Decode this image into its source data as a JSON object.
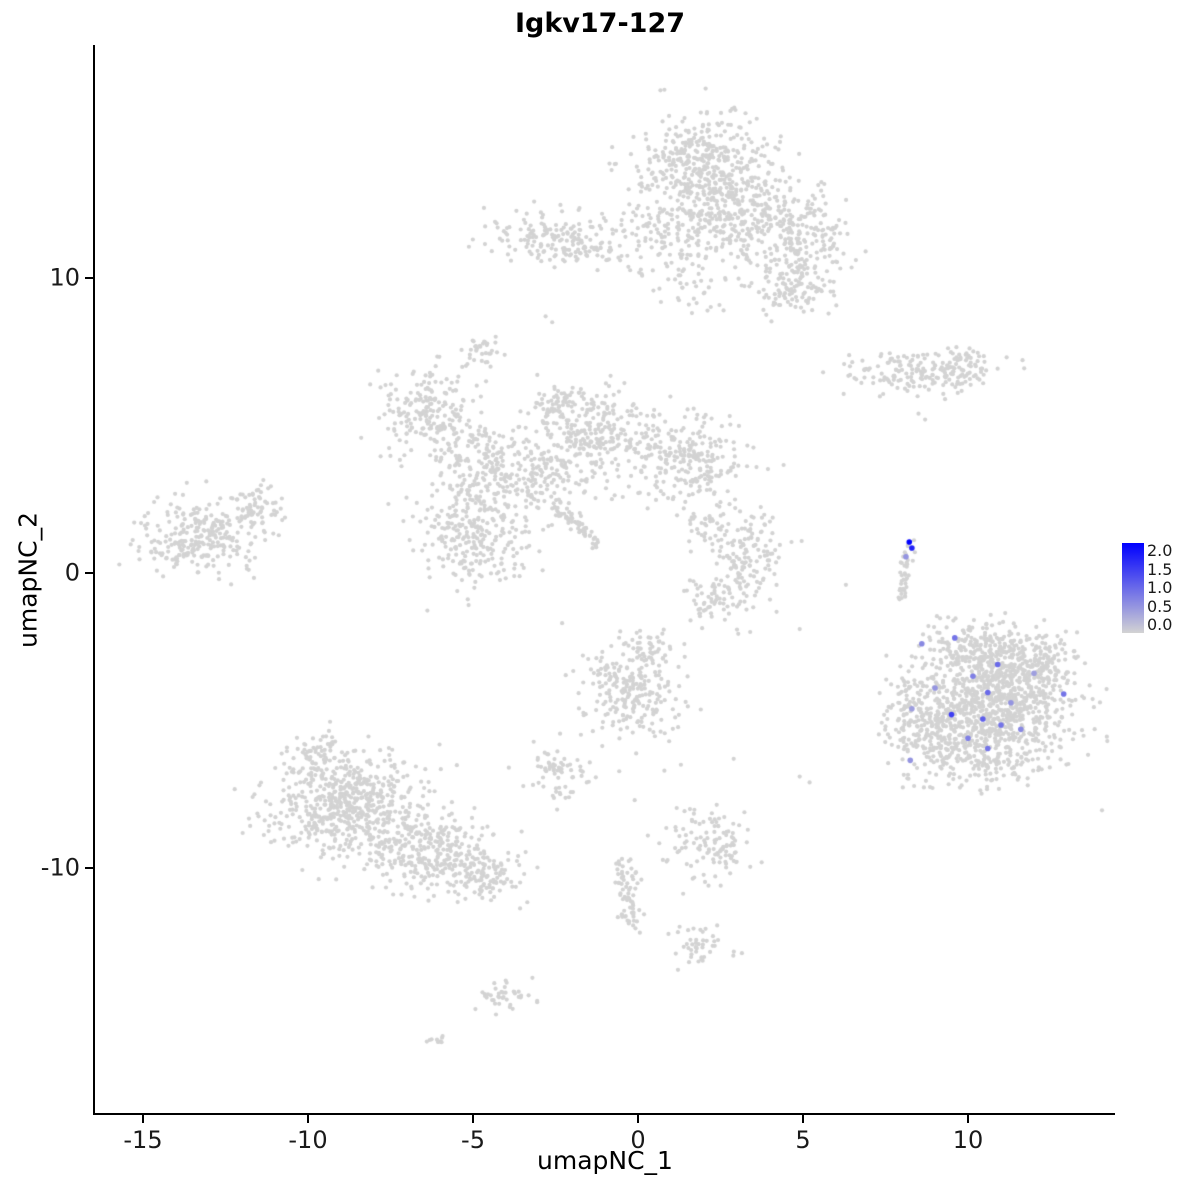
{
  "chart_data": {
    "type": "scatter",
    "title": "Igkv17-127",
    "xlabel": "umapNC_1",
    "ylabel": "umapNC_2",
    "xlim": [
      -16.5,
      14.5
    ],
    "ylim": [
      -18.3,
      17.9
    ],
    "grid": "off",
    "legend_position": "right",
    "x_ticks": [
      -15,
      -10,
      -5,
      0,
      5,
      10
    ],
    "x_tick_labels": [
      "-15",
      "-10",
      "-5",
      "0",
      "5",
      "10"
    ],
    "y_ticks": [
      10,
      0,
      -10
    ],
    "y_tick_labels": [
      "10",
      "0",
      "-10"
    ],
    "point_color_zero": "#d3d3d3",
    "point_color_max": "#0000ff",
    "legend": {
      "vmin": 0.0,
      "vmax": 2.0,
      "ticks": [
        "2.0",
        "1.5",
        "1.0",
        "0.5",
        "0.0"
      ]
    },
    "clusters": [
      {
        "cx": 2.0,
        "cy": 13.8,
        "sx": 1.0,
        "sy": 0.9,
        "n": 430
      },
      {
        "cx": 3.3,
        "cy": 12.1,
        "sx": 0.9,
        "sy": 0.8,
        "n": 240
      },
      {
        "cx": 5.0,
        "cy": 11.2,
        "sx": 0.7,
        "sy": 0.9,
        "n": 200
      },
      {
        "cx": 4.6,
        "cy": 9.6,
        "sx": 0.5,
        "sy": 0.5,
        "n": 80
      },
      {
        "cx": 1.0,
        "cy": 11.6,
        "sx": 0.9,
        "sy": 0.7,
        "n": 130
      },
      {
        "cx": 1.8,
        "cy": 9.8,
        "sx": 0.8,
        "sy": 0.5,
        "n": 45
      },
      {
        "cx": -2.7,
        "cy": 11.4,
        "sx": 1.0,
        "sy": 0.45,
        "n": 150
      },
      {
        "cx": -1.2,
        "cy": 10.9,
        "sx": 0.5,
        "sy": 0.3,
        "n": 40
      },
      {
        "cx": -4.7,
        "cy": 7.4,
        "sx": 0.35,
        "sy": 0.3,
        "n": 35
      },
      {
        "cx": 8.3,
        "cy": 6.8,
        "sx": 1.1,
        "sy": 0.35,
        "n": 150
      },
      {
        "cx": 9.8,
        "cy": 6.9,
        "sx": 0.5,
        "sy": 0.4,
        "n": 60
      },
      {
        "cx": -6.3,
        "cy": 5.4,
        "sx": 0.75,
        "sy": 0.8,
        "n": 210
      },
      {
        "cx": -4.7,
        "cy": 3.6,
        "sx": 0.7,
        "sy": 0.7,
        "n": 170
      },
      {
        "cx": -1.3,
        "cy": 4.8,
        "sx": 0.85,
        "sy": 0.7,
        "n": 270
      },
      {
        "cx": 1.5,
        "cy": 3.8,
        "sx": 0.9,
        "sy": 0.7,
        "n": 250
      },
      {
        "cx": -5.0,
        "cy": 1.2,
        "sx": 0.9,
        "sy": 0.9,
        "n": 270
      },
      {
        "cx": -2.9,
        "cy": 3.1,
        "sx": 0.8,
        "sy": 0.6,
        "n": 130
      },
      {
        "cx": -2.5,
        "cy": 5.8,
        "sx": 0.4,
        "sy": 0.35,
        "n": 50
      },
      {
        "cx": -13.2,
        "cy": 1.2,
        "sx": 1.0,
        "sy": 0.65,
        "n": 270
      },
      {
        "cx": -11.7,
        "cy": 2.2,
        "sx": 0.5,
        "sy": 0.4,
        "n": 60
      },
      {
        "cx": 3.3,
        "cy": 0.6,
        "sx": 0.55,
        "sy": 0.75,
        "n": 140
      },
      {
        "cx": 2.3,
        "cy": -0.9,
        "sx": 0.5,
        "sy": 0.35,
        "n": 60
      },
      {
        "cx": 2.2,
        "cy": 1.6,
        "sx": 0.4,
        "sy": 0.3,
        "n": 40
      },
      {
        "cx": 10.9,
        "cy": -4.4,
        "sx": 1.15,
        "sy": 1.0,
        "n": 850
      },
      {
        "cx": 11.8,
        "cy": -3.0,
        "sx": 0.7,
        "sy": 0.5,
        "n": 150
      },
      {
        "cx": 10.2,
        "cy": -2.5,
        "sx": 0.8,
        "sy": 0.45,
        "n": 160
      },
      {
        "cx": 9.0,
        "cy": -5.4,
        "sx": 0.7,
        "sy": 0.8,
        "n": 220
      },
      {
        "cx": 8.35,
        "cy": -4.3,
        "sx": 0.4,
        "sy": 0.7,
        "n": 60
      },
      {
        "cx": 10.6,
        "cy": -6.3,
        "sx": 0.9,
        "sy": 0.5,
        "n": 140
      },
      {
        "cx": -8.8,
        "cy": -7.9,
        "sx": 1.1,
        "sy": 0.9,
        "n": 600
      },
      {
        "cx": -6.3,
        "cy": -9.4,
        "sx": 1.0,
        "sy": 0.7,
        "n": 300
      },
      {
        "cx": -4.6,
        "cy": -10.2,
        "sx": 0.6,
        "sy": 0.4,
        "n": 100
      },
      {
        "cx": -9.8,
        "cy": -6.2,
        "sx": 0.4,
        "sy": 0.35,
        "n": 60
      },
      {
        "cx": -0.3,
        "cy": -4.0,
        "sx": 0.75,
        "sy": 0.75,
        "n": 240
      },
      {
        "cx": 0.4,
        "cy": -2.5,
        "sx": 0.35,
        "sy": 0.3,
        "n": 40
      },
      {
        "cx": -2.5,
        "cy": -6.7,
        "sx": 0.45,
        "sy": 0.45,
        "n": 70
      },
      {
        "cx": 2.3,
        "cy": -9.2,
        "sx": 0.7,
        "sy": 0.6,
        "n": 120
      },
      {
        "cx": 1.9,
        "cy": -12.6,
        "sx": 0.45,
        "sy": 0.35,
        "n": 45
      },
      {
        "cx": -4.0,
        "cy": -14.3,
        "sx": 0.4,
        "sy": 0.3,
        "n": 40
      }
    ],
    "streaks": [
      {
        "x1": -2.5,
        "y1": 2.3,
        "x2": -1.2,
        "y2": 0.9,
        "w": 0.12,
        "n": 60
      },
      {
        "x1": 8.2,
        "y1": 1.2,
        "x2": 8.0,
        "y2": -0.9,
        "w": 0.1,
        "n": 40
      },
      {
        "x1": -0.4,
        "y1": -9.8,
        "x2": -0.2,
        "y2": -12.0,
        "w": 0.18,
        "n": 70
      },
      {
        "x1": -6.4,
        "y1": -15.9,
        "x2": -5.9,
        "y2": -15.8,
        "w": 0.07,
        "n": 10
      }
    ],
    "singles": [
      [
        -2.8,
        8.7
      ],
      [
        -2.6,
        8.5
      ],
      [
        8.5,
        5.4
      ],
      [
        8.7,
        5.2
      ],
      [
        4.9,
        -6.9
      ],
      [
        5.2,
        -7.1
      ],
      [
        0.8,
        -6.7
      ],
      [
        3.4,
        -2.0
      ],
      [
        7.5,
        -5.2
      ],
      [
        8.8,
        -1.8
      ],
      [
        9.4,
        -1.5
      ],
      [
        2.9,
        -6.3
      ],
      [
        -0.1,
        -7.7
      ],
      [
        6.3,
        -0.4
      ],
      [
        4.9,
        -1.9
      ],
      [
        4.0,
        -0.9
      ],
      [
        -2.3,
        -1.7
      ],
      [
        0.3,
        -8.9
      ],
      [
        1.3,
        -6.5
      ]
    ],
    "expressing_cells": [
      {
        "x": 8.22,
        "y": 1.05,
        "v": 2.0
      },
      {
        "x": 8.3,
        "y": 0.85,
        "v": 1.7
      },
      {
        "x": 8.12,
        "y": 0.55,
        "v": 0.6
      },
      {
        "x": 9.6,
        "y": -2.2,
        "v": 0.9
      },
      {
        "x": 8.6,
        "y": -2.4,
        "v": 0.7
      },
      {
        "x": 10.9,
        "y": -3.1,
        "v": 1.0
      },
      {
        "x": 10.15,
        "y": -3.5,
        "v": 0.8
      },
      {
        "x": 10.6,
        "y": -4.05,
        "v": 1.0
      },
      {
        "x": 12.9,
        "y": -4.1,
        "v": 0.9
      },
      {
        "x": 9.5,
        "y": -4.8,
        "v": 1.4
      },
      {
        "x": 10.45,
        "y": -4.95,
        "v": 1.1
      },
      {
        "x": 11.0,
        "y": -5.15,
        "v": 0.9
      },
      {
        "x": 11.6,
        "y": -5.3,
        "v": 0.7
      },
      {
        "x": 10.0,
        "y": -5.6,
        "v": 0.8
      },
      {
        "x": 10.6,
        "y": -5.95,
        "v": 0.9
      },
      {
        "x": 8.3,
        "y": -4.6,
        "v": 0.5
      },
      {
        "x": 8.25,
        "y": -6.35,
        "v": 0.6
      },
      {
        "x": 11.3,
        "y": -4.4,
        "v": 0.6
      },
      {
        "x": 12.0,
        "y": -3.4,
        "v": 0.5
      },
      {
        "x": 9.0,
        "y": -3.9,
        "v": 0.6
      }
    ]
  }
}
